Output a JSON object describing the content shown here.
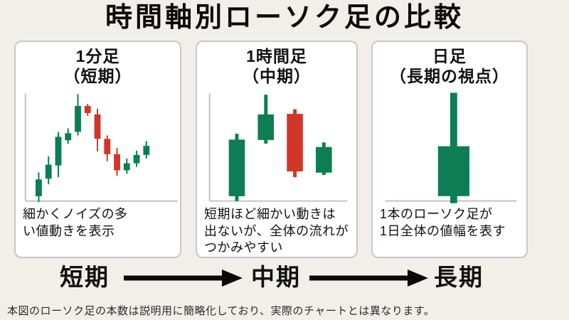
{
  "title": "時間軸別ローソク足の比較",
  "footnote": "本図のローソク足の本数は説明用に簡略化しており、実際のチャートとは異なります。",
  "colors": {
    "background": "#f2efeb",
    "panel_bg": "#ffffff",
    "panel_border": "#c9c7c4",
    "axis": "#c2c2c2",
    "up": "#0d7d54",
    "down": "#d23627",
    "text": "#111111",
    "footnote_text": "#2b2b2b"
  },
  "panels": [
    {
      "heading_line1": "1分足",
      "heading_line2": "（短期）",
      "description": "細かくノイズの多\nい値動きを表示"
    },
    {
      "heading_line1": "1時間足",
      "heading_line2": "（中期）",
      "description": "短期ほど細かい動きは\n出ないが、全体の流れが\nつかみやすい"
    },
    {
      "heading_line1": "日足",
      "heading_line2": "（長期の視点）",
      "description": "1本のローソク足が\n1日全体の値幅を表す"
    }
  ],
  "timeline": {
    "labels": [
      "短期",
      "中期",
      "長期"
    ]
  },
  "chart_data": [
    {
      "type": "candlestick",
      "title": "1分足（短期）",
      "ylim": [
        0,
        100
      ],
      "axes_labeled": false,
      "candles": [
        {
          "open": 4.5,
          "high": 26.6,
          "low": -1.0,
          "close": 20.1
        },
        {
          "open": 20.8,
          "high": 41.6,
          "low": 15.6,
          "close": 33.8
        },
        {
          "open": 33.1,
          "high": 64.3,
          "low": 22.1,
          "close": 59.7
        },
        {
          "open": 56.5,
          "high": 67.5,
          "low": 53.2,
          "close": 63.0
        },
        {
          "open": 64.3,
          "high": 99.4,
          "low": 61.0,
          "close": 88.3
        },
        {
          "open": 88.3,
          "high": 90.3,
          "low": 79.2,
          "close": 81.8
        },
        {
          "open": 80.5,
          "high": 85.7,
          "low": 46.1,
          "close": 57.8
        },
        {
          "open": 57.8,
          "high": 61.0,
          "low": 37.0,
          "close": 43.5
        },
        {
          "open": 43.5,
          "high": 49.4,
          "low": 23.4,
          "close": 28.6
        },
        {
          "open": 28.6,
          "high": 39.6,
          "low": 25.3,
          "close": 35.1
        },
        {
          "open": 35.1,
          "high": 46.8,
          "low": 31.8,
          "close": 42.9
        },
        {
          "open": 42.9,
          "high": 55.8,
          "low": 39.6,
          "close": 51.3
        }
      ],
      "layout": {
        "axis_left": true,
        "axis_x": 14,
        "y_top": 73,
        "y_base": 227,
        "base_x1": 14,
        "base_x2": 232,
        "first_cx": 33,
        "spacing": 14,
        "body_width": 9,
        "wick_width": 2
      }
    },
    {
      "type": "candlestick",
      "title": "1時間足（中期）",
      "ylim": [
        0,
        100
      ],
      "axes_labeled": false,
      "candles": [
        {
          "open": 4.5,
          "high": 62.5,
          "low": 0.0,
          "close": 57.1
        },
        {
          "open": 56.7,
          "high": 98.9,
          "low": 53.4,
          "close": 80.5
        },
        {
          "open": 81.0,
          "high": 85.3,
          "low": 22.1,
          "close": 27.5
        },
        {
          "open": 26.4,
          "high": 54.5,
          "low": 24.2,
          "close": 50.2
        }
      ],
      "layout": {
        "axis_left": true,
        "axis_x": 18,
        "y_top": 73,
        "y_base": 227,
        "base_x1": 18,
        "base_x2": 215,
        "first_cx": 57,
        "spacing": 41.5,
        "body_width": 23,
        "wick_width": 5
      }
    },
    {
      "type": "candlestick",
      "title": "日足（長期の視点）",
      "ylim": [
        0,
        100
      ],
      "axes_labeled": false,
      "candles": [
        {
          "open": 4.5,
          "high": 100.0,
          "low": -2.0,
          "close": 50.6
        }
      ],
      "layout": {
        "axis_left": false,
        "y_top": 72,
        "y_base": 227,
        "base_x1": 18,
        "base_x2": 206,
        "first_cx": 116,
        "spacing": 40,
        "body_width": 45,
        "wick_width": 10
      }
    }
  ]
}
